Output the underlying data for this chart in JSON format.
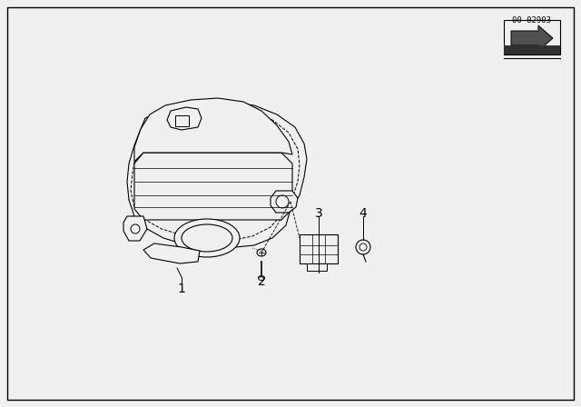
{
  "background_color": "#f0f0f0",
  "page_color": "#f0f0f0",
  "border_color": "#000000",
  "label_1": "1",
  "label_2": "2",
  "label_3": "3",
  "label_4": "4",
  "label_fontsize": 10,
  "part_number_text": "00 02903",
  "line_color": "#000000",
  "fill_color": "#f0f0f0",
  "lw": 0.8
}
